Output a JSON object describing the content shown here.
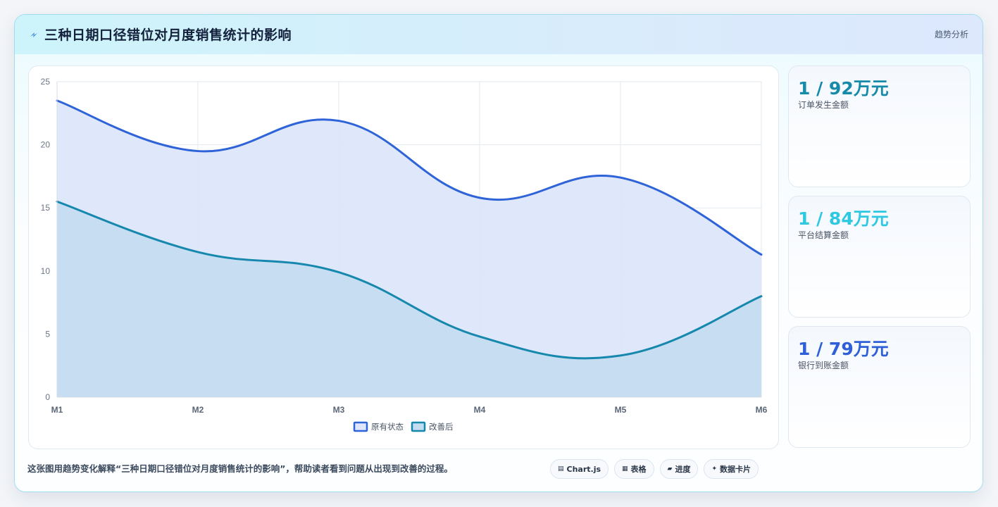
{
  "header": {
    "title": "三种日期口径错位对月度销售统计的影响",
    "tag": "趋势分析",
    "icon": "lightning-icon"
  },
  "chart_data": {
    "type": "area",
    "categories": [
      "M1",
      "M2",
      "M3",
      "M4",
      "M5",
      "M6"
    ],
    "ylim": [
      0,
      25
    ],
    "yticks": [
      "0",
      "5",
      "10",
      "15",
      "20",
      "25"
    ],
    "grid": true,
    "legend_position": "bottom",
    "series": [
      {
        "name": "原有状态",
        "values": [
          23.5,
          19.5,
          21.9,
          15.8,
          17.4,
          11.3
        ],
        "color": "#2f63d8",
        "fill": "#dde6fa"
      },
      {
        "name": "改善后",
        "values": [
          15.5,
          11.5,
          9.9,
          4.8,
          3.3,
          8.0
        ],
        "color": "#1788ad",
        "fill": "#c4dcf1"
      }
    ]
  },
  "kpis": [
    {
      "value": "1 / 92万元",
      "label": "订单发生金额",
      "color": "#168aa8"
    },
    {
      "value": "1 / 84万元",
      "label": "平台结算金额",
      "color": "#2ec9e0"
    },
    {
      "value": "1 / 79万元",
      "label": "银行到账金额",
      "color": "#2e5fd6"
    }
  ],
  "footer": {
    "note": "这张图用趋势变化解释“三种日期口径错位对月度销售统计的影响”，帮助读者看到问题从出现到改善的过程。",
    "chips": [
      {
        "icon": "chart-icon",
        "glyph": "▤",
        "label": "Chart.js"
      },
      {
        "icon": "table-icon",
        "glyph": "▦",
        "label": "表格"
      },
      {
        "icon": "progress-icon",
        "glyph": "▰",
        "label": "进度"
      },
      {
        "icon": "sparkle-icon",
        "glyph": "✦",
        "label": "数据卡片"
      }
    ]
  }
}
